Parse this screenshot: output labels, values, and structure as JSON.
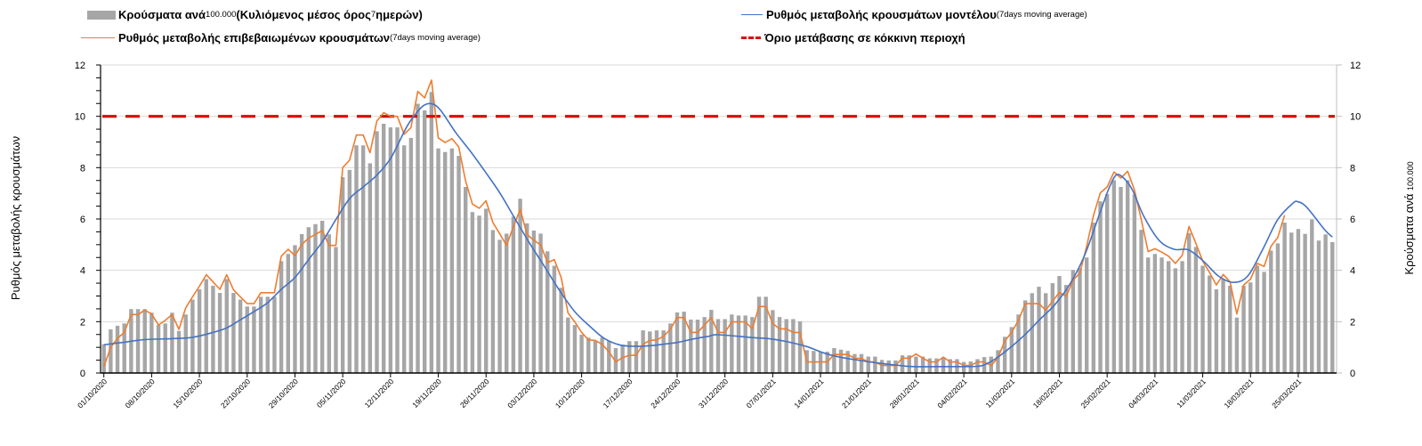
{
  "legend": {
    "bars": {
      "a": "Κρούσματα ανά ",
      "b": "100.000",
      "c": " (Κυλιόμενος μέσος όρος ",
      "d": "7",
      "e": " ημερών)"
    },
    "confirmed": {
      "a": "Ρυθμός μεταβολής επιβεβαιωμένων κρουσμάτων",
      "b": " (7days moving average)"
    },
    "model": {
      "a": "Ρυθμός μεταβολής κρουσμάτων μοντέλου",
      "b": " (7days moving average)"
    },
    "threshold": {
      "a": "Όριο μετάβασης σε κόκκινη περιοχή"
    }
  },
  "colors": {
    "bars": "#a6a6a6",
    "confirmed": "#ed7d31",
    "model": "#4472c4",
    "threshold": "#e00000",
    "grid": "#d9d9d9"
  },
  "chart_data": {
    "type": "bar",
    "title": "",
    "ylabel": "Ρυθμός μεταβολής κρουσμάτων",
    "y2label": {
      "a": "Κρούσματα ανά ",
      "b": "100.000"
    },
    "ylim": [
      0,
      12
    ],
    "y2lim": [
      0,
      12
    ],
    "yticks": [
      "0",
      "2",
      "4",
      "6",
      "8",
      "10",
      "12"
    ],
    "grid": true,
    "legend_position": "top",
    "x_start_date": "01/10/2020",
    "x_unit": "day index from 01/10/2020",
    "xtick_labels": [
      "01/10/2020",
      "08/10/2020",
      "15/10/2020",
      "22/10/2020",
      "29/10/2020",
      "05/11/2020",
      "12/11/2020",
      "19/11/2020",
      "26/11/2020",
      "03/12/2020",
      "10/12/2020",
      "17/12/2020",
      "24/12/2020",
      "31/12/2020",
      "07/01/2021",
      "14/01/2021",
      "21/01/2021",
      "28/01/2021",
      "04/02/2021",
      "11/02/2021",
      "18/02/2021",
      "25/02/2021",
      "04/03/2021",
      "11/03/2021",
      "18/03/2021",
      "25/03/2021"
    ],
    "threshold": 10,
    "series": [
      {
        "name": "Κρούσματα ανά 100.000 (Κυλιόμενος μέσος όρος 7 ημερών)",
        "type": "bar",
        "axis": "right",
        "values": [
          1.12,
          1.7,
          1.84,
          1.93,
          2.49,
          2.49,
          2.49,
          2.35,
          1.87,
          1.93,
          2.35,
          1.64,
          2.28,
          2.86,
          3.26,
          3.66,
          3.4,
          3.12,
          3.66,
          3.12,
          2.86,
          2.59,
          2.59,
          2.97,
          2.97,
          2.97,
          4.36,
          4.64,
          4.98,
          5.41,
          5.68,
          5.8,
          5.93,
          5.4,
          4.91,
          7.63,
          7.91,
          8.87,
          8.87,
          8.17,
          9.42,
          9.71,
          9.57,
          9.57,
          8.87,
          9.16,
          10.49,
          10.23,
          10.95,
          8.75,
          8.61,
          8.75,
          8.46,
          7.25,
          6.27,
          6.13,
          6.4,
          5.57,
          5.19,
          5.43,
          6.09,
          6.79,
          5.83,
          5.55,
          5.43,
          4.74,
          4.18,
          3.32,
          2.16,
          1.87,
          1.49,
          1.38,
          1.26,
          1.38,
          1.24,
          0.97,
          1.1,
          1.24,
          1.24,
          1.66,
          1.62,
          1.66,
          1.66,
          1.93,
          2.36,
          2.39,
          2.08,
          2.08,
          2.18,
          2.46,
          2.1,
          2.1,
          2.28,
          2.24,
          2.24,
          2.18,
          2.97,
          2.97,
          2.45,
          2.18,
          2.1,
          2.1,
          2.01,
          0.89,
          0.86,
          0.83,
          0.83,
          0.97,
          0.91,
          0.86,
          0.74,
          0.74,
          0.64,
          0.64,
          0.51,
          0.49,
          0.49,
          0.69,
          0.69,
          0.64,
          0.64,
          0.57,
          0.57,
          0.6,
          0.54,
          0.54,
          0.43,
          0.45,
          0.54,
          0.62,
          0.64,
          0.89,
          1.41,
          1.79,
          2.28,
          2.83,
          3.11,
          3.36,
          3.11,
          3.5,
          3.78,
          3.43,
          4.01,
          4.09,
          4.5,
          5.86,
          6.69,
          6.97,
          7.51,
          7.25,
          7.51,
          6.96,
          5.58,
          4.5,
          4.64,
          4.5,
          4.36,
          4.08,
          4.36,
          5.45,
          4.91,
          4.18,
          3.8,
          3.26,
          3.66,
          3.4,
          2.16,
          3.4,
          3.53,
          4.18,
          3.94,
          4.77,
          5.05,
          5.86,
          5.47,
          5.61,
          5.42,
          5.98,
          5.16,
          5.4,
          5.1
        ]
      },
      {
        "name": "Ρυθμός μεταβολής επιβεβαιωμένων κρουσμάτων (7days moving average)",
        "type": "line",
        "axis": "left",
        "values": [
          0.25,
          1.0,
          1.35,
          1.58,
          2.28,
          2.28,
          2.45,
          2.3,
          1.87,
          2.05,
          2.28,
          1.7,
          2.54,
          2.97,
          3.38,
          3.83,
          3.55,
          3.26,
          3.83,
          3.24,
          2.97,
          2.7,
          2.7,
          3.13,
          3.13,
          3.13,
          4.55,
          4.82,
          4.57,
          5.0,
          5.26,
          5.4,
          5.55,
          4.97,
          4.97,
          8.0,
          8.29,
          9.27,
          9.27,
          8.58,
          9.82,
          10.14,
          10.0,
          10.0,
          9.3,
          9.56,
          10.97,
          10.72,
          11.41,
          9.16,
          8.98,
          9.13,
          8.81,
          7.48,
          6.58,
          6.42,
          6.71,
          5.86,
          5.42,
          4.97,
          5.69,
          6.38,
          5.4,
          5.17,
          4.99,
          4.3,
          4.42,
          3.72,
          2.34,
          1.99,
          1.58,
          1.29,
          1.27,
          1.12,
          0.83,
          0.43,
          0.6,
          0.69,
          0.69,
          1.12,
          1.27,
          1.29,
          1.43,
          1.7,
          2.16,
          2.16,
          1.58,
          1.58,
          1.87,
          2.16,
          1.58,
          1.58,
          1.99,
          1.99,
          1.99,
          1.72,
          2.59,
          2.59,
          1.93,
          1.72,
          1.72,
          1.58,
          1.58,
          0.43,
          0.43,
          0.43,
          0.43,
          0.72,
          0.72,
          0.72,
          0.57,
          0.57,
          0.43,
          0.43,
          0.29,
          0.29,
          0.29,
          0.58,
          0.58,
          0.74,
          0.58,
          0.43,
          0.43,
          0.62,
          0.43,
          0.43,
          0.29,
          0.29,
          0.43,
          0.43,
          0.29,
          0.6,
          1.24,
          1.58,
          2.05,
          2.7,
          2.7,
          2.7,
          2.45,
          2.8,
          3.14,
          2.99,
          3.61,
          3.9,
          4.94,
          6.15,
          7.02,
          7.25,
          7.83,
          7.6,
          7.86,
          7.13,
          5.98,
          4.73,
          4.84,
          4.71,
          4.55,
          4.27,
          4.59,
          5.71,
          5.05,
          4.36,
          3.92,
          3.43,
          3.84,
          3.55,
          2.3,
          3.43,
          3.66,
          4.27,
          4.15,
          4.94,
          5.28,
          6.15,
          null,
          null,
          null,
          null,
          null,
          null,
          null
        ]
      },
      {
        "name": "Ρυθμός μεταβολής κρουσμάτων μοντέλου (7days moving average)",
        "type": "line",
        "axis": "left",
        "points": [
          [
            0,
            1.1
          ],
          [
            3,
            1.2
          ],
          [
            6,
            1.3
          ],
          [
            10,
            1.34
          ],
          [
            13,
            1.39
          ],
          [
            16,
            1.58
          ],
          [
            18,
            1.76
          ],
          [
            20,
            2.07
          ],
          [
            22,
            2.39
          ],
          [
            24,
            2.74
          ],
          [
            26,
            3.26
          ],
          [
            28,
            3.72
          ],
          [
            30,
            4.42
          ],
          [
            32,
            5.11
          ],
          [
            34,
            5.98
          ],
          [
            36,
            6.79
          ],
          [
            38,
            7.25
          ],
          [
            40,
            7.71
          ],
          [
            42,
            8.35
          ],
          [
            44,
            9.4
          ],
          [
            45,
            9.85
          ],
          [
            46.7,
            10.39
          ],
          [
            48,
            10.49
          ],
          [
            49.3,
            10.25
          ],
          [
            51.5,
            9.39
          ],
          [
            53.7,
            8.64
          ],
          [
            55.9,
            7.83
          ],
          [
            58,
            7.02
          ],
          [
            60.2,
            6.03
          ],
          [
            62.4,
            5.05
          ],
          [
            64.6,
            4.13
          ],
          [
            66.8,
            3.2
          ],
          [
            69,
            2.39
          ],
          [
            71.2,
            1.82
          ],
          [
            73.3,
            1.35
          ],
          [
            75.5,
            1.1
          ],
          [
            77.7,
            1.04
          ],
          [
            79.9,
            1.06
          ],
          [
            82,
            1.12
          ],
          [
            84.2,
            1.2
          ],
          [
            86.4,
            1.33
          ],
          [
            88.6,
            1.43
          ],
          [
            90,
            1.49
          ],
          [
            95,
            1.38
          ],
          [
            97.7,
            1.33
          ],
          [
            100.3,
            1.21
          ],
          [
            103,
            1.03
          ],
          [
            105.6,
            0.77
          ],
          [
            108.2,
            0.6
          ],
          [
            110.8,
            0.49
          ],
          [
            113.4,
            0.39
          ],
          [
            116,
            0.31
          ],
          [
            118.6,
            0.25
          ],
          [
            124,
            0.25
          ],
          [
            128,
            0.26
          ],
          [
            129.5,
            0.38
          ],
          [
            131,
            0.62
          ],
          [
            132.9,
            1.01
          ],
          [
            135.1,
            1.53
          ],
          [
            137.2,
            2.1
          ],
          [
            139.4,
            2.68
          ],
          [
            141.6,
            3.49
          ],
          [
            143.7,
            4.59
          ],
          [
            145.9,
            6.21
          ],
          [
            147.2,
            7.15
          ],
          [
            148.3,
            7.71
          ],
          [
            149.4,
            7.6
          ],
          [
            150.7,
            7.13
          ],
          [
            152.4,
            6.09
          ],
          [
            154.6,
            5.17
          ],
          [
            156.8,
            4.82
          ],
          [
            158.9,
            4.8
          ],
          [
            161.1,
            4.36
          ],
          [
            163.3,
            3.78
          ],
          [
            165.5,
            3.53
          ],
          [
            167.6,
            3.78
          ],
          [
            169.8,
            4.82
          ],
          [
            172,
            5.98
          ],
          [
            174.2,
            6.61
          ],
          [
            175,
            6.67
          ],
          [
            176.3,
            6.44
          ],
          [
            178.9,
            5.57
          ],
          [
            180,
            5.3
          ]
        ]
      },
      {
        "name": "Όριο μετάβασης σε κόκκινη περιοχή",
        "type": "hline",
        "axis": "left",
        "value": 10
      }
    ]
  }
}
